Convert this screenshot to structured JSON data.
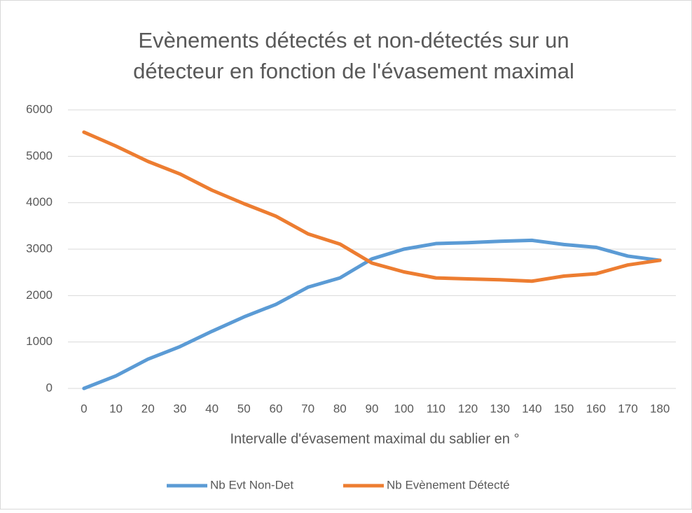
{
  "chart_data": {
    "type": "line",
    "title": [
      "Evènements détectés et non-détectés sur un",
      "détecteur en fonction de l'évasement maximal"
    ],
    "x_label": "Intervalle d'évasement maximal du sablier en °",
    "categories": [
      "0",
      "10",
      "20",
      "30",
      "40",
      "50",
      "60",
      "70",
      "80",
      "90",
      "100",
      "110",
      "120",
      "130",
      "140",
      "150",
      "160",
      "170",
      "180"
    ],
    "series": [
      {
        "name": "Nb Evt Non-Det",
        "color": "#5b9bd5",
        "values": [
          0,
          270,
          630,
          900,
          1230,
          1540,
          1810,
          2180,
          2380,
          2790,
          3000,
          3120,
          3140,
          3170,
          3190,
          3100,
          3040,
          2850,
          2760
        ]
      },
      {
        "name": "Nb Evènement Détecté",
        "color": "#ed7d31",
        "values": [
          5520,
          5220,
          4890,
          4620,
          4270,
          3980,
          3710,
          3330,
          3110,
          2700,
          2510,
          2380,
          2360,
          2340,
          2310,
          2420,
          2470,
          2660,
          2760
        ]
      }
    ],
    "ylim": [
      0,
      6000
    ],
    "yticks": [
      0,
      1000,
      2000,
      3000,
      4000,
      5000,
      6000
    ],
    "grid": true,
    "legend": "bottom"
  }
}
